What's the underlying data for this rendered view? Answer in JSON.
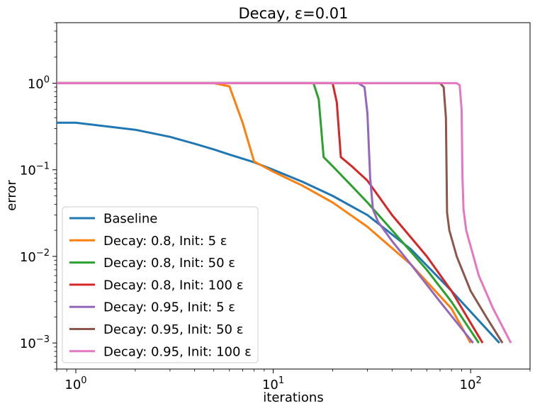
{
  "chart_data": {
    "type": "line",
    "title": "Decay, ε=0.01",
    "xlabel": "iterations",
    "ylabel": "error",
    "xscale": "log",
    "yscale": "log",
    "xlim": [
      0.8,
      200
    ],
    "ylim": [
      0.0005,
      5
    ],
    "grid": false,
    "legend_position": "lower-left",
    "x_ticks": [
      {
        "value": 1,
        "base": "10",
        "exp": "0"
      },
      {
        "value": 10,
        "base": "10",
        "exp": "1"
      },
      {
        "value": 100,
        "base": "10",
        "exp": "2"
      }
    ],
    "y_ticks": [
      {
        "value": 1,
        "base": "10",
        "exp": "0"
      },
      {
        "value": 0.1,
        "base": "10",
        "exp": "−1"
      },
      {
        "value": 0.01,
        "base": "10",
        "exp": "−2"
      },
      {
        "value": 0.001,
        "base": "10",
        "exp": "−3"
      }
    ],
    "series": [
      {
        "name": "Baseline",
        "color": "#1f77b4",
        "x": [
          0.8,
          1,
          2,
          3,
          4,
          5,
          6,
          8,
          10,
          14,
          20,
          30,
          50,
          80,
          140
        ],
        "y": [
          0.35,
          0.35,
          0.29,
          0.24,
          0.2,
          0.172,
          0.15,
          0.122,
          0.1,
          0.073,
          0.05,
          0.03,
          0.012,
          0.004,
          0.001
        ]
      },
      {
        "name": "Decay: 0.8, Init: 5 ε",
        "color": "#ff7f0e",
        "x": [
          0.8,
          5,
          6,
          7,
          8,
          10,
          14,
          20,
          30,
          50,
          80,
          100
        ],
        "y": [
          1,
          1,
          0.92,
          0.35,
          0.125,
          0.095,
          0.066,
          0.042,
          0.022,
          0.008,
          0.0025,
          0.001
        ]
      },
      {
        "name": "Decay: 0.8, Init: 50 ε",
        "color": "#2ca02c",
        "x": [
          0.8,
          16,
          17,
          18,
          20,
          25,
          30,
          40,
          60,
          80,
          110
        ],
        "y": [
          1,
          1,
          0.65,
          0.14,
          0.11,
          0.065,
          0.042,
          0.02,
          0.007,
          0.003,
          0.001
        ]
      },
      {
        "name": "Decay: 0.8, Init: 100 ε",
        "color": "#d62728",
        "x": [
          0.8,
          20,
          21,
          22,
          25,
          30,
          40,
          60,
          80,
          115
        ],
        "y": [
          1,
          1,
          0.6,
          0.14,
          0.11,
          0.075,
          0.03,
          0.01,
          0.004,
          0.001
        ]
      },
      {
        "name": "Decay: 0.95, Init: 5 ε",
        "color": "#9467bd",
        "x": [
          0.8,
          27,
          29,
          30,
          31,
          32,
          34,
          40,
          50,
          70,
          103
        ],
        "y": [
          1,
          1,
          0.9,
          0.45,
          0.08,
          0.035,
          0.025,
          0.015,
          0.008,
          0.003,
          0.001
        ]
      },
      {
        "name": "Decay: 0.95, Init: 50 ε",
        "color": "#8c564b",
        "x": [
          0.8,
          70,
          73,
          75,
          76,
          78,
          85,
          100,
          120,
          145
        ],
        "y": [
          1,
          1,
          0.9,
          0.4,
          0.032,
          0.02,
          0.01,
          0.004,
          0.002,
          0.001
        ]
      },
      {
        "name": "Decay: 0.95, Init: 100 ε",
        "color": "#e377c2",
        "x": [
          0.8,
          85,
          88,
          90,
          91,
          92,
          95,
          110,
          130,
          160
        ],
        "y": [
          1,
          1,
          0.95,
          0.5,
          0.08,
          0.035,
          0.02,
          0.006,
          0.0025,
          0.001
        ]
      }
    ]
  }
}
